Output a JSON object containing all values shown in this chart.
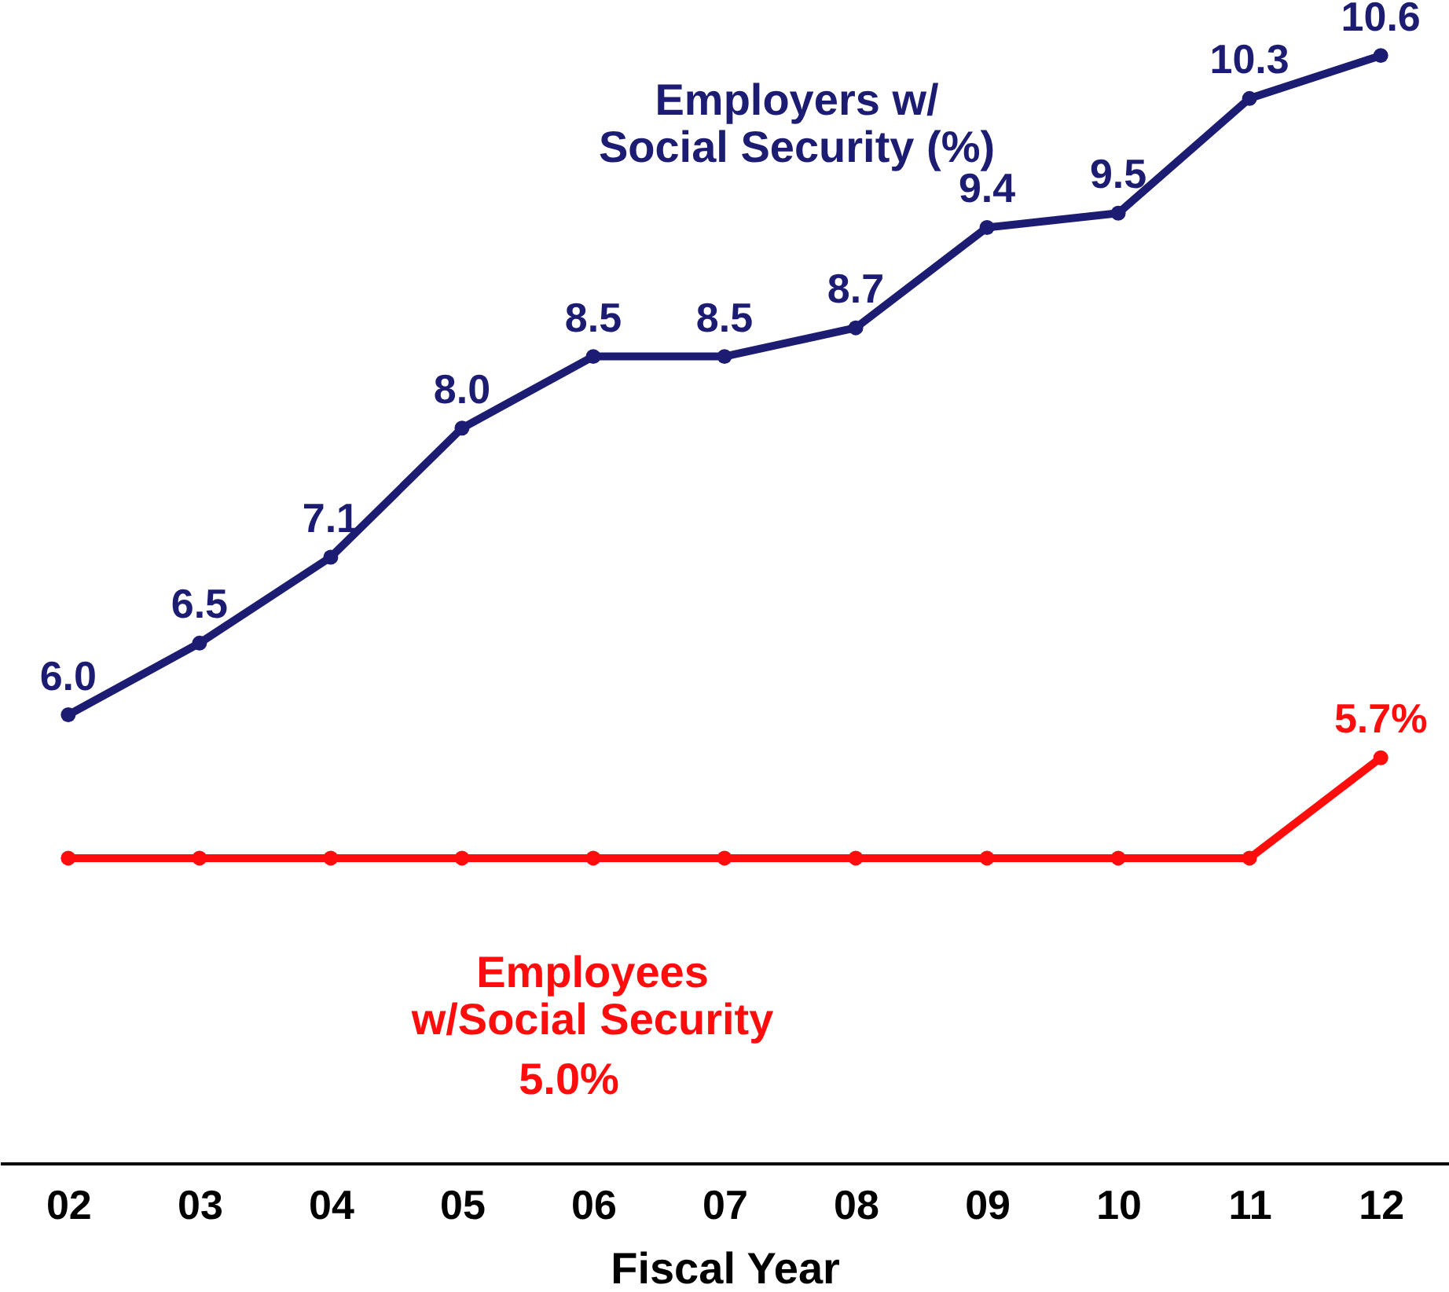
{
  "chart_data": {
    "type": "line",
    "xlabel": "Fiscal Year",
    "categories": [
      "02",
      "03",
      "04",
      "05",
      "06",
      "07",
      "08",
      "09",
      "10",
      "11",
      "12"
    ],
    "series": [
      {
        "name": "Employers w/\nSocial Security (%)",
        "color": "#1c1c73",
        "values": [
          6.0,
          6.5,
          7.1,
          8.0,
          8.5,
          8.5,
          8.7,
          9.4,
          9.5,
          10.3,
          10.6
        ],
        "value_labels": [
          "6.0",
          "6.5",
          "7.1",
          "8.0",
          "8.5",
          "8.5",
          "8.7",
          "9.4",
          "9.5",
          "10.3",
          "10.6"
        ]
      },
      {
        "name": "Employees\nw/Social Security",
        "color": "#ff0d0d",
        "values": [
          5.0,
          5.0,
          5.0,
          5.0,
          5.0,
          5.0,
          5.0,
          5.0,
          5.0,
          5.0,
          5.7
        ],
        "value_labels": [
          null,
          null,
          null,
          null,
          null,
          null,
          null,
          null,
          null,
          null,
          "5.7%"
        ]
      }
    ],
    "annotations": [
      "5.0%"
    ],
    "marker": "circle",
    "line_style": "solid",
    "legend": false,
    "grid": false
  }
}
